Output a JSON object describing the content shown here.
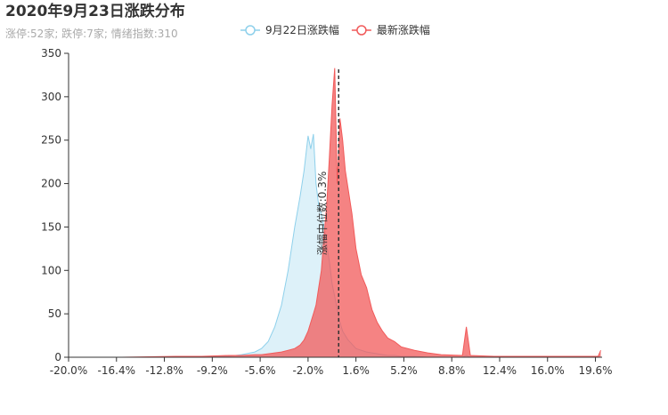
{
  "chart_data": {
    "type": "area",
    "title": "2020年9月23日涨跌分布",
    "subtitle": "涨停:52家; 跌停:7家; 情绪指数:310",
    "x": [
      -20,
      -16,
      -12,
      -10,
      -8,
      -7,
      -6,
      -5.5,
      -5,
      -4.5,
      -4,
      -3.5,
      -3,
      -2.6,
      -2.3,
      -2.0,
      -1.8,
      -1.6,
      -1.4,
      -1.2,
      -1.0,
      -0.8,
      -0.6,
      -0.4,
      -0.2,
      0,
      0.2,
      0.4,
      0.6,
      0.8,
      1.0,
      1.3,
      1.6,
      2.0,
      2.4,
      2.8,
      3.2,
      3.6,
      4.0,
      4.5,
      5.0,
      6,
      7,
      8,
      9.6,
      9.9,
      10.2,
      12,
      15,
      18,
      19.8,
      20
    ],
    "series": [
      {
        "name": "9月22日涨跌幅",
        "color": "#8ed0eb",
        "values": [
          0,
          0,
          0,
          0,
          1,
          3,
          6,
          10,
          18,
          35,
          60,
          100,
          150,
          185,
          215,
          255,
          240,
          257,
          200,
          175,
          165,
          150,
          130,
          110,
          85,
          70,
          55,
          40,
          30,
          25,
          20,
          15,
          10,
          8,
          6,
          5,
          4,
          3,
          2,
          2,
          1,
          1,
          0,
          0,
          0,
          2,
          0,
          0,
          0,
          0,
          0,
          0
        ]
      },
      {
        "name": "最新涨跌幅",
        "color": "#f15a5a",
        "values": [
          0,
          0,
          1,
          1,
          2,
          2,
          3,
          3,
          4,
          5,
          6,
          8,
          10,
          14,
          20,
          30,
          40,
          50,
          60,
          80,
          100,
          140,
          175,
          230,
          290,
          333,
          200,
          275,
          250,
          215,
          195,
          165,
          125,
          95,
          80,
          55,
          40,
          30,
          22,
          18,
          12,
          8,
          5,
          3,
          2,
          35,
          2,
          1,
          1,
          1,
          1,
          8
        ]
      }
    ],
    "median": 0.3,
    "median_label": "涨幅中位数:0.3%",
    "xlim": [
      -20,
      20.1
    ],
    "xticks": [
      {
        "value": -20,
        "label": "-20.0%"
      },
      {
        "value": -16.4,
        "label": "-16.4%"
      },
      {
        "value": -12.8,
        "label": "-12.8%"
      },
      {
        "value": -9.2,
        "label": "-9.2%"
      },
      {
        "value": -5.6,
        "label": "-5.6%"
      },
      {
        "value": -2,
        "label": "-2.0%"
      },
      {
        "value": 1.6,
        "label": "1.6%"
      },
      {
        "value": 5.2,
        "label": "5.2%"
      },
      {
        "value": 8.8,
        "label": "8.8%"
      },
      {
        "value": 12.4,
        "label": "12.4%"
      },
      {
        "value": 16,
        "label": "16.0%"
      },
      {
        "value": 19.6,
        "label": "19.6%"
      }
    ],
    "ylim": [
      0,
      350
    ],
    "yticks": [
      0,
      50,
      100,
      150,
      200,
      250,
      300,
      350
    ],
    "grid": false
  }
}
